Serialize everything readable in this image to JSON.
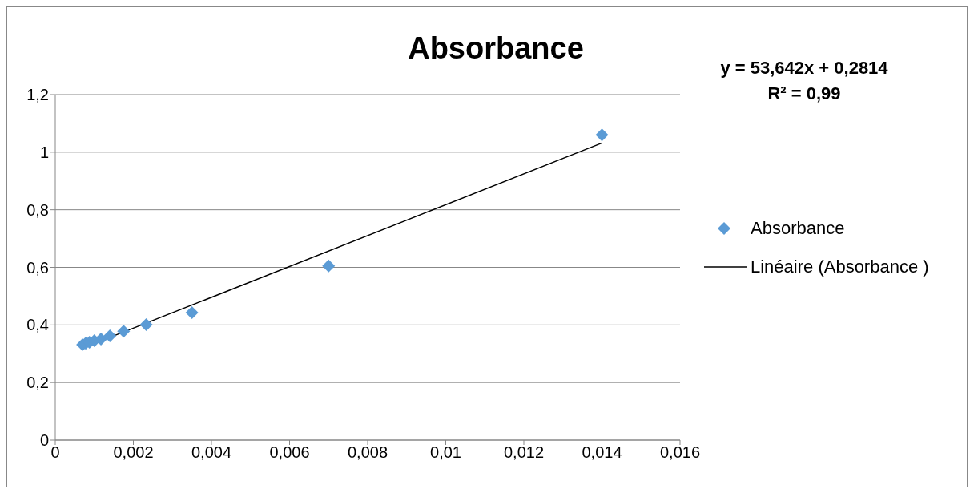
{
  "chart_data": {
    "type": "scatter",
    "title": "Absorbance",
    "series": [
      {
        "name": "Absorbance",
        "color": "#5b9bd5",
        "marker": "diamond",
        "x": [
          0.0007,
          0.00078,
          0.000875,
          0.001,
          0.00117,
          0.0014,
          0.00175,
          0.00233,
          0.0035,
          0.007,
          0.014
        ],
        "values": [
          0.331,
          0.336,
          0.34,
          0.345,
          0.351,
          0.362,
          0.378,
          0.401,
          0.443,
          0.605,
          1.06
        ]
      },
      {
        "name": "Linéaire (Absorbance )",
        "type": "line",
        "color": "#000000",
        "marker": "none",
        "x": [
          0.0007,
          0.014
        ],
        "values": [
          0.319,
          1.032
        ]
      }
    ],
    "xlim": [
      0,
      0.016
    ],
    "xticks": [
      {
        "value": 0,
        "label": "0"
      },
      {
        "value": 0.002,
        "label": "0,002"
      },
      {
        "value": 0.004,
        "label": "0,004"
      },
      {
        "value": 0.006,
        "label": "0,006"
      },
      {
        "value": 0.008,
        "label": "0,008"
      },
      {
        "value": 0.01,
        "label": "0,01"
      },
      {
        "value": 0.012,
        "label": "0,012"
      },
      {
        "value": 0.014,
        "label": "0,014"
      },
      {
        "value": 0.016,
        "label": "0,016"
      }
    ],
    "ylim": [
      0,
      1.2
    ],
    "yticks": [
      {
        "value": 0,
        "label": "0"
      },
      {
        "value": 0.2,
        "label": "0,2"
      },
      {
        "value": 0.4,
        "label": "0,4"
      },
      {
        "value": 0.6,
        "label": "0,6"
      },
      {
        "value": 0.8,
        "label": "0,8"
      },
      {
        "value": 1,
        "label": "1"
      },
      {
        "value": 1.2,
        "label": "1,2"
      }
    ],
    "grid": "y",
    "legend": "right",
    "annotations": [
      "y = 53,642x + 0,2814",
      "R² = 0,99"
    ]
  }
}
